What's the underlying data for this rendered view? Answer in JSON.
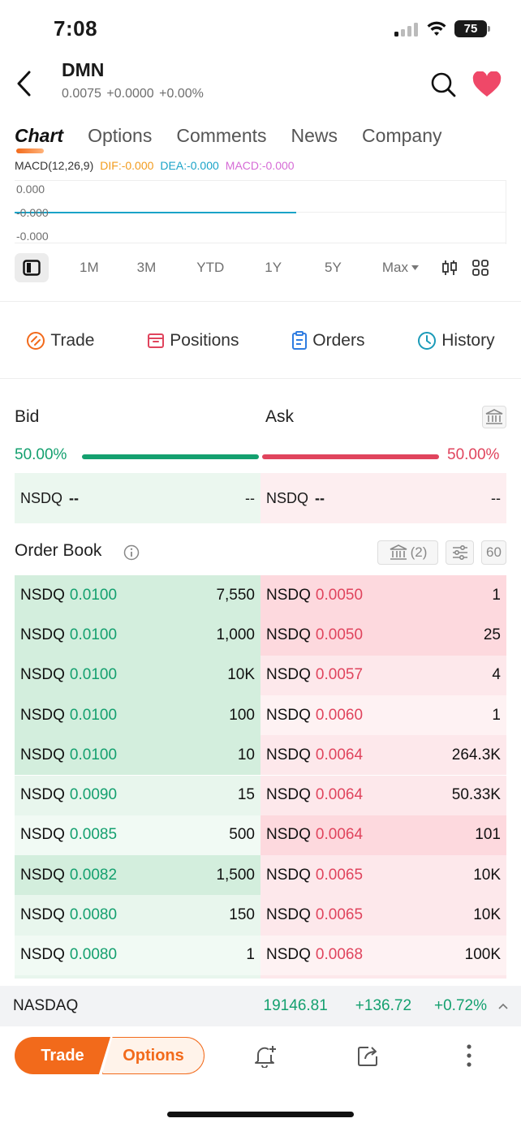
{
  "status": {
    "time": "7:08",
    "battery": "75"
  },
  "header": {
    "symbol": "DMN",
    "price": "0.0075",
    "change": "+0.0000",
    "change_pct": "+0.00%"
  },
  "tabs": [
    "Chart",
    "Options",
    "Comments",
    "News",
    "Company"
  ],
  "macd": {
    "label": "MACD(12,26,9)",
    "dif": "DIF:-0.000",
    "dea": "DEA:-0.000",
    "macd": "MACD:-0.000",
    "axis_top": "0.000",
    "axis_mid": "-0.000",
    "axis_bot": "-0.000"
  },
  "ranges": [
    "1M",
    "3M",
    "YTD",
    "1Y",
    "5Y",
    "Max"
  ],
  "actions": {
    "trade": "Trade",
    "positions": "Positions",
    "orders": "Orders",
    "history": "History"
  },
  "bidask": {
    "bid_label": "Bid",
    "ask_label": "Ask",
    "bid_pct": "50.00%",
    "ask_pct": "50.00%",
    "bid_share": 0.5,
    "bid_exchange": "NSDQ",
    "bid_price": "--",
    "bid_qty": "--",
    "ask_exchange": "NSDQ",
    "ask_price": "--",
    "ask_qty": "--"
  },
  "order_book": {
    "title": "Order Book",
    "exchange_count": "(2)",
    "levels": "60",
    "bids": [
      {
        "ex": "NSDQ",
        "px": "0.0100",
        "qty": "7,550",
        "depth": 1.0
      },
      {
        "ex": "NSDQ",
        "px": "0.0100",
        "qty": "1,000",
        "depth": 1.0
      },
      {
        "ex": "NSDQ",
        "px": "0.0100",
        "qty": "10K",
        "depth": 1.0
      },
      {
        "ex": "NSDQ",
        "px": "0.0100",
        "qty": "100",
        "depth": 1.0
      },
      {
        "ex": "NSDQ",
        "px": "0.0100",
        "qty": "10",
        "depth": 1.0
      },
      {
        "ex": "NSDQ",
        "px": "0.0090",
        "qty": "15",
        "depth": 1.0
      },
      {
        "ex": "NSDQ",
        "px": "0.0085",
        "qty": "500",
        "depth": 1.0
      },
      {
        "ex": "NSDQ",
        "px": "0.0082",
        "qty": "1,500",
        "depth": 1.0
      },
      {
        "ex": "NSDQ",
        "px": "0.0080",
        "qty": "150",
        "depth": 1.0
      },
      {
        "ex": "NSDQ",
        "px": "0.0080",
        "qty": "1",
        "depth": 1.0
      }
    ],
    "asks": [
      {
        "ex": "NSDQ",
        "px": "0.0050",
        "qty": "1",
        "depth": 1.0
      },
      {
        "ex": "NSDQ",
        "px": "0.0050",
        "qty": "25",
        "depth": 1.0
      },
      {
        "ex": "NSDQ",
        "px": "0.0057",
        "qty": "4",
        "depth": 1.0
      },
      {
        "ex": "NSDQ",
        "px": "0.0060",
        "qty": "1",
        "depth": 1.0
      },
      {
        "ex": "NSDQ",
        "px": "0.0064",
        "qty": "264.3K",
        "depth": 1.0
      },
      {
        "ex": "NSDQ",
        "px": "0.0064",
        "qty": "50.33K",
        "depth": 1.0
      },
      {
        "ex": "NSDQ",
        "px": "0.0064",
        "qty": "101",
        "depth": 1.0
      },
      {
        "ex": "NSDQ",
        "px": "0.0065",
        "qty": "10K",
        "depth": 1.0
      },
      {
        "ex": "NSDQ",
        "px": "0.0065",
        "qty": "10K",
        "depth": 1.0
      },
      {
        "ex": "NSDQ",
        "px": "0.0068",
        "qty": "100K",
        "depth": 1.0
      }
    ]
  },
  "index": {
    "name": "NASDAQ",
    "value": "19146.81",
    "change": "+136.72",
    "change_pct": "+0.72%"
  },
  "bottom": {
    "trade": "Trade",
    "options": "Options"
  },
  "colors": {
    "accent": "#f26a1b",
    "bid": "#14a06f",
    "ask": "#e0445d"
  }
}
